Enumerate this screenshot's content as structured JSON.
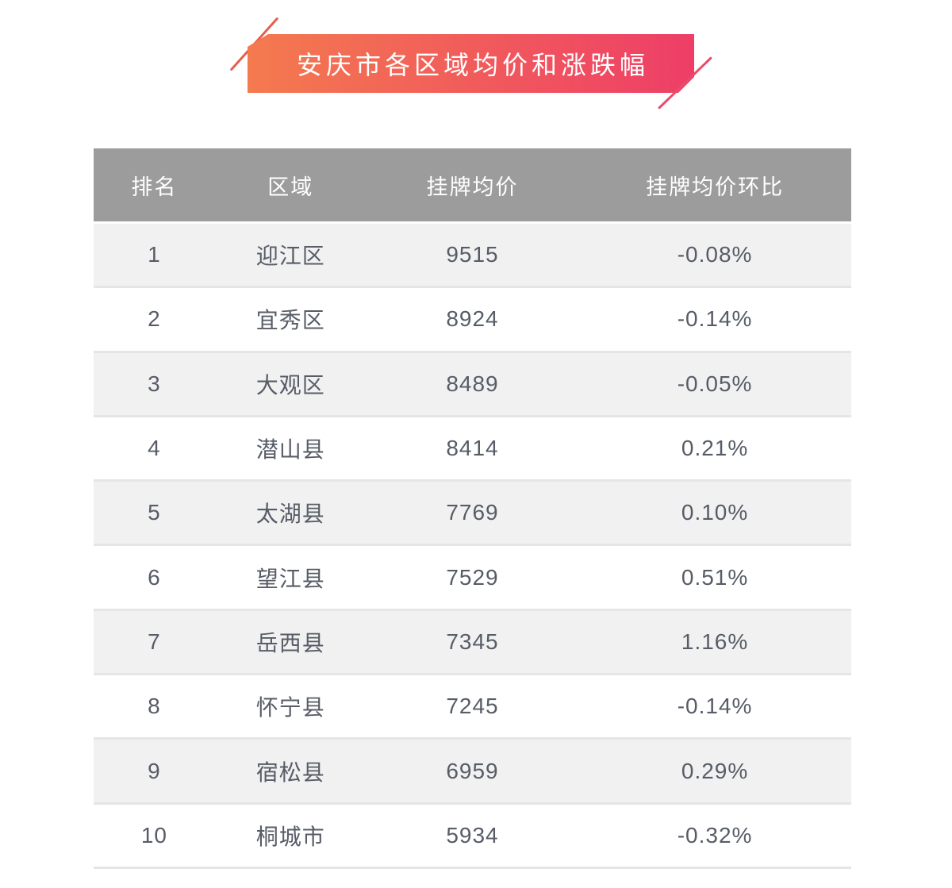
{
  "title": {
    "text": "安庆市各区域均价和涨跌幅"
  },
  "table": {
    "headers": [
      "排名",
      "区域",
      "挂牌均价",
      "挂牌均价环比"
    ],
    "rows": [
      {
        "rank": "1",
        "region": "迎江区",
        "price": "9515",
        "change": "-0.08%"
      },
      {
        "rank": "2",
        "region": "宜秀区",
        "price": "8924",
        "change": "-0.14%"
      },
      {
        "rank": "3",
        "region": "大观区",
        "price": "8489",
        "change": "-0.05%"
      },
      {
        "rank": "4",
        "region": "潜山县",
        "price": "8414",
        "change": "0.21%"
      },
      {
        "rank": "5",
        "region": "太湖县",
        "price": "7769",
        "change": "0.10%"
      },
      {
        "rank": "6",
        "region": "望江县",
        "price": "7529",
        "change": "0.51%"
      },
      {
        "rank": "7",
        "region": "岳西县",
        "price": "7345",
        "change": "1.16%"
      },
      {
        "rank": "8",
        "region": "怀宁县",
        "price": "7245",
        "change": "-0.14%"
      },
      {
        "rank": "9",
        "region": "宿松县",
        "price": "6959",
        "change": "0.29%"
      },
      {
        "rank": "10",
        "region": "桐城市",
        "price": "5934",
        "change": "-0.32%"
      }
    ]
  },
  "colors": {
    "banner_gradient_from": "#F47A4F",
    "banner_gradient_to": "#EE3E67",
    "slash_top_left": "#E4604E",
    "slash_bottom_right": "#EC4A6B",
    "header_background": "#9C9C9C",
    "header_text": "#FFFFFF",
    "row_odd_background": "#F1F1F2",
    "row_even_background": "#FFFFFF",
    "row_separator": "#E5E5E7",
    "cell_text": "#575C66"
  },
  "chart_data": {
    "type": "table",
    "title": "安庆市各区域均价和涨跌幅",
    "columns": [
      "排名",
      "区域",
      "挂牌均价",
      "挂牌均价环比"
    ],
    "rows": [
      [
        1,
        "迎江区",
        9515,
        "-0.08%"
      ],
      [
        2,
        "宜秀区",
        8924,
        "-0.14%"
      ],
      [
        3,
        "大观区",
        8489,
        "-0.05%"
      ],
      [
        4,
        "潜山县",
        8414,
        "0.21%"
      ],
      [
        5,
        "太湖县",
        7769,
        "0.10%"
      ],
      [
        6,
        "望江县",
        7529,
        "0.51%"
      ],
      [
        7,
        "岳西县",
        7345,
        "1.16%"
      ],
      [
        8,
        "怀宁县",
        7245,
        "-0.14%"
      ],
      [
        9,
        "宿松县",
        6959,
        "0.29%"
      ],
      [
        10,
        "桐城市",
        5934,
        "-0.32%"
      ]
    ]
  }
}
